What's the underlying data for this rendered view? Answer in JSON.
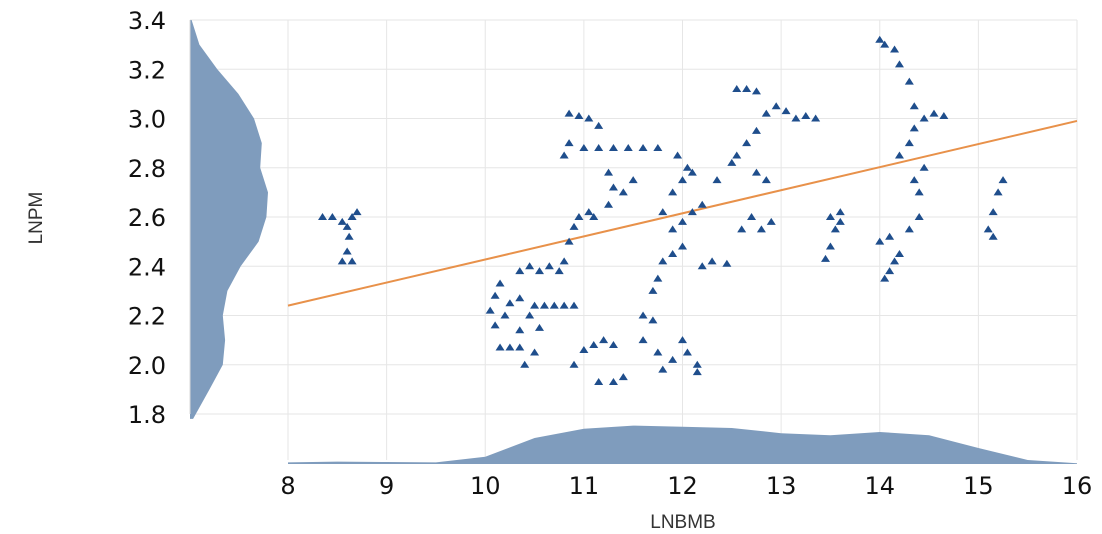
{
  "chart_data": {
    "type": "scatter",
    "title": "",
    "xlabel": "LNBMB",
    "ylabel": "LNPM",
    "xlim": [
      8,
      16
    ],
    "ylim": [
      1.8,
      3.4
    ],
    "x_ticks": [
      "8",
      "9",
      "10",
      "11",
      "12",
      "13",
      "14",
      "15",
      "16"
    ],
    "y_ticks": [
      "1.8",
      "2.0",
      "2.2",
      "2.4",
      "2.6",
      "2.8",
      "3.0",
      "3.2",
      "3.4"
    ],
    "grid": true,
    "legend": "none",
    "colors": {
      "points": "#1f4e8c",
      "fit_line": "#e8914a",
      "density": "#7f9cbd",
      "grid": "#e6e6e6"
    },
    "fit_line": {
      "x": [
        8,
        16
      ],
      "y": [
        2.24,
        2.99
      ]
    },
    "marginal_x_density": {
      "x": [
        8.0,
        8.5,
        9.0,
        9.5,
        10.0,
        10.5,
        11.0,
        11.5,
        12.0,
        12.5,
        13.0,
        13.5,
        14.0,
        14.5,
        15.0,
        15.5,
        16.0
      ],
      "density": [
        0.04,
        0.06,
        0.05,
        0.04,
        0.18,
        0.65,
        0.88,
        0.96,
        0.93,
        0.9,
        0.77,
        0.72,
        0.8,
        0.72,
        0.4,
        0.1,
        0.02
      ]
    },
    "marginal_y_density": {
      "y": [
        1.78,
        1.9,
        2.0,
        2.1,
        2.2,
        2.3,
        2.4,
        2.5,
        2.6,
        2.7,
        2.8,
        2.9,
        3.0,
        3.1,
        3.2,
        3.3,
        3.4
      ],
      "density": [
        0.04,
        0.25,
        0.42,
        0.45,
        0.42,
        0.48,
        0.65,
        0.88,
        0.98,
        1.0,
        0.9,
        0.92,
        0.82,
        0.62,
        0.35,
        0.12,
        0.02
      ]
    },
    "series": [
      {
        "values": [
          [
            8.35,
            2.6
          ],
          [
            8.45,
            2.6
          ],
          [
            8.55,
            2.58
          ],
          [
            8.6,
            2.56
          ],
          [
            8.65,
            2.6
          ],
          [
            8.7,
            2.62
          ],
          [
            8.62,
            2.52
          ],
          [
            8.6,
            2.46
          ],
          [
            8.55,
            2.42
          ],
          [
            8.65,
            2.42
          ],
          [
            10.05,
            2.22
          ],
          [
            10.1,
            2.28
          ],
          [
            10.1,
            2.16
          ],
          [
            10.15,
            2.07
          ],
          [
            10.25,
            2.07
          ],
          [
            10.35,
            2.07
          ],
          [
            10.15,
            2.33
          ],
          [
            10.25,
            2.25
          ],
          [
            10.35,
            2.27
          ],
          [
            10.2,
            2.2
          ],
          [
            10.45,
            2.2
          ],
          [
            10.35,
            2.14
          ],
          [
            10.55,
            2.15
          ],
          [
            10.4,
            2.0
          ],
          [
            10.5,
            2.05
          ],
          [
            10.35,
            2.38
          ],
          [
            10.45,
            2.4
          ],
          [
            10.55,
            2.38
          ],
          [
            10.65,
            2.4
          ],
          [
            10.75,
            2.38
          ],
          [
            10.5,
            2.24
          ],
          [
            10.6,
            2.24
          ],
          [
            10.7,
            2.24
          ],
          [
            10.8,
            2.24
          ],
          [
            10.9,
            2.24
          ],
          [
            10.8,
            2.42
          ],
          [
            10.85,
            2.5
          ],
          [
            10.9,
            2.56
          ],
          [
            10.95,
            2.6
          ],
          [
            11.05,
            2.62
          ],
          [
            11.1,
            2.6
          ],
          [
            10.8,
            2.85
          ],
          [
            10.85,
            2.9
          ],
          [
            10.85,
            3.02
          ],
          [
            10.95,
            3.01
          ],
          [
            11.05,
            3.0
          ],
          [
            11.15,
            2.97
          ],
          [
            10.9,
            2.0
          ],
          [
            11.0,
            2.06
          ],
          [
            11.1,
            2.08
          ],
          [
            11.2,
            2.1
          ],
          [
            11.3,
            2.08
          ],
          [
            11.15,
            1.93
          ],
          [
            11.3,
            1.93
          ],
          [
            11.4,
            1.95
          ],
          [
            11.0,
            2.88
          ],
          [
            11.15,
            2.88
          ],
          [
            11.3,
            2.88
          ],
          [
            11.45,
            2.88
          ],
          [
            11.6,
            2.88
          ],
          [
            11.75,
            2.88
          ],
          [
            11.25,
            2.78
          ],
          [
            11.3,
            2.72
          ],
          [
            11.25,
            2.65
          ],
          [
            11.4,
            2.7
          ],
          [
            11.5,
            2.75
          ],
          [
            11.6,
            2.2
          ],
          [
            11.7,
            2.18
          ],
          [
            11.6,
            2.1
          ],
          [
            11.75,
            2.05
          ],
          [
            11.8,
            1.98
          ],
          [
            11.9,
            2.02
          ],
          [
            11.7,
            2.3
          ],
          [
            11.75,
            2.35
          ],
          [
            11.8,
            2.42
          ],
          [
            11.9,
            2.45
          ],
          [
            12.0,
            2.48
          ],
          [
            11.8,
            2.62
          ],
          [
            11.9,
            2.7
          ],
          [
            12.0,
            2.75
          ],
          [
            12.1,
            2.78
          ],
          [
            11.95,
            2.85
          ],
          [
            12.05,
            2.8
          ],
          [
            12.0,
            2.1
          ],
          [
            12.05,
            2.05
          ],
          [
            12.15,
            2.0
          ],
          [
            12.15,
            1.97
          ],
          [
            11.9,
            2.55
          ],
          [
            12.0,
            2.58
          ],
          [
            12.1,
            2.62
          ],
          [
            12.2,
            2.65
          ],
          [
            12.35,
            2.75
          ],
          [
            12.2,
            2.4
          ],
          [
            12.3,
            2.42
          ],
          [
            12.45,
            2.41
          ],
          [
            12.5,
            2.82
          ],
          [
            12.55,
            2.85
          ],
          [
            12.65,
            2.9
          ],
          [
            12.75,
            2.78
          ],
          [
            12.85,
            2.75
          ],
          [
            12.55,
            3.12
          ],
          [
            12.65,
            3.12
          ],
          [
            12.75,
            3.11
          ],
          [
            12.6,
            2.55
          ],
          [
            12.7,
            2.6
          ],
          [
            12.8,
            2.55
          ],
          [
            12.9,
            2.58
          ],
          [
            12.75,
            2.95
          ],
          [
            12.85,
            3.02
          ],
          [
            12.95,
            3.05
          ],
          [
            13.05,
            3.03
          ],
          [
            13.15,
            3.0
          ],
          [
            13.25,
            3.01
          ],
          [
            13.35,
            3.0
          ],
          [
            13.5,
            2.6
          ],
          [
            13.6,
            2.62
          ],
          [
            13.55,
            2.55
          ],
          [
            13.5,
            2.48
          ],
          [
            13.45,
            2.43
          ],
          [
            13.6,
            2.58
          ],
          [
            14.0,
            3.32
          ],
          [
            14.05,
            3.3
          ],
          [
            14.15,
            3.28
          ],
          [
            14.2,
            3.22
          ],
          [
            14.3,
            3.15
          ],
          [
            14.35,
            3.05
          ],
          [
            14.0,
            2.5
          ],
          [
            14.1,
            2.52
          ],
          [
            14.05,
            2.35
          ],
          [
            14.1,
            2.38
          ],
          [
            14.15,
            2.42
          ],
          [
            14.2,
            2.45
          ],
          [
            14.2,
            2.85
          ],
          [
            14.3,
            2.9
          ],
          [
            14.35,
            2.96
          ],
          [
            14.45,
            3.0
          ],
          [
            14.55,
            3.02
          ],
          [
            14.65,
            3.01
          ],
          [
            14.3,
            2.55
          ],
          [
            14.4,
            2.6
          ],
          [
            14.4,
            2.7
          ],
          [
            14.35,
            2.75
          ],
          [
            14.45,
            2.8
          ],
          [
            15.1,
            2.55
          ],
          [
            15.15,
            2.62
          ],
          [
            15.2,
            2.7
          ],
          [
            15.25,
            2.75
          ],
          [
            15.15,
            2.52
          ]
        ]
      }
    ]
  }
}
